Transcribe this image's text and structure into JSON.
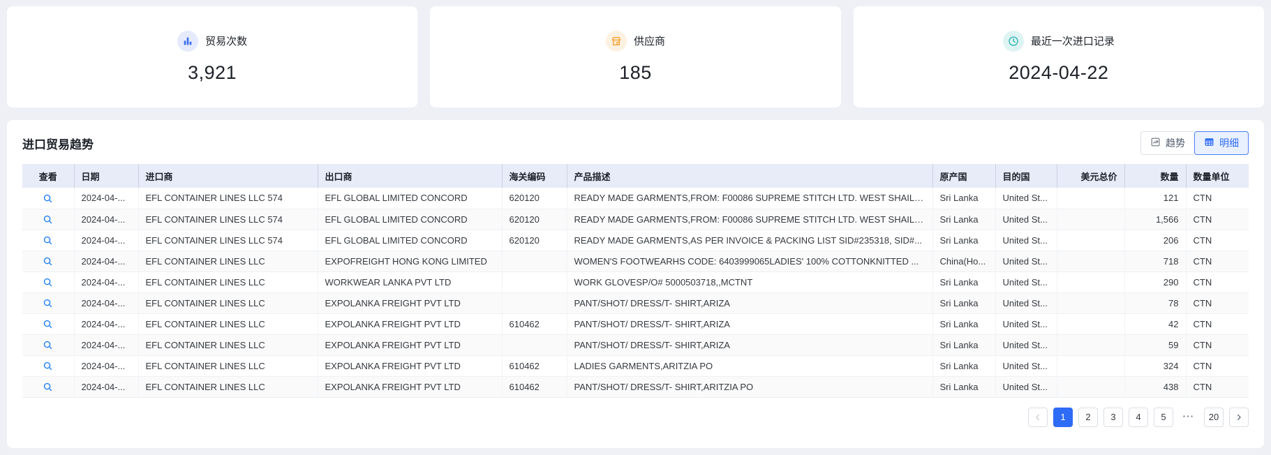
{
  "cards": [
    {
      "icon": "bar-chart-icon",
      "label": "贸易次数",
      "value": "3,921",
      "icon_color": "#3d6df2",
      "icon_bg": "#e5ebfc"
    },
    {
      "icon": "storefront-icon",
      "label": "供应商",
      "value": "185",
      "icon_color": "#f6a12d",
      "icon_bg": "#fdf1e1"
    },
    {
      "icon": "clock-icon",
      "label": "最近一次进口记录",
      "value": "2024-04-22",
      "icon_color": "#25b3b0",
      "icon_bg": "#def4f3"
    }
  ],
  "section": {
    "title": "进口贸易趋势",
    "trend_button": "趋势",
    "detail_button": "明细"
  },
  "table": {
    "headers": [
      "查看",
      "日期",
      "进口商",
      "出口商",
      "海关编码",
      "产品描述",
      "原产国",
      "目的国",
      "美元总价",
      "数量",
      "数量单位"
    ],
    "rows": [
      {
        "date": "2024-04-...",
        "importer": "EFL CONTAINER LINES LLC 574",
        "exporter": "EFL GLOBAL LIMITED CONCORD",
        "hs_code": "620120",
        "description": "READY MADE GARMENTS,FROM: F00086 SUPREME STITCH LTD. WEST SHAILD...",
        "origin": "Sri Lanka",
        "destination": "United St...",
        "usd_total": "",
        "quantity": "121",
        "unit": "CTN"
      },
      {
        "date": "2024-04-...",
        "importer": "EFL CONTAINER LINES LLC 574",
        "exporter": "EFL GLOBAL LIMITED CONCORD",
        "hs_code": "620120",
        "description": "READY MADE GARMENTS,FROM: F00086 SUPREME STITCH LTD. WEST SHAILD...",
        "origin": "Sri Lanka",
        "destination": "United St...",
        "usd_total": "",
        "quantity": "1,566",
        "unit": "CTN"
      },
      {
        "date": "2024-04-...",
        "importer": "EFL CONTAINER LINES LLC 574",
        "exporter": "EFL GLOBAL LIMITED CONCORD",
        "hs_code": "620120",
        "description": "READY MADE GARMENTS,AS PER INVOICE & PACKING LIST SID#235318, SID#...",
        "origin": "Sri Lanka",
        "destination": "United St...",
        "usd_total": "",
        "quantity": "206",
        "unit": "CTN"
      },
      {
        "date": "2024-04-...",
        "importer": "EFL CONTAINER LINES LLC",
        "exporter": "EXPOFREIGHT HONG KONG LIMITED",
        "hs_code": "",
        "description": "WOMEN'S FOOTWEARHS CODE: 6403999065LADIES' 100% COTTONKNITTED ...",
        "origin": "China(Ho...",
        "destination": "United St...",
        "usd_total": "",
        "quantity": "718",
        "unit": "CTN"
      },
      {
        "date": "2024-04-...",
        "importer": "EFL CONTAINER LINES LLC",
        "exporter": "WORKWEAR LANKA PVT LTD",
        "hs_code": "",
        "description": "WORK GLOVESP/O# 5000503718,,MCTNT",
        "origin": "Sri Lanka",
        "destination": "United St...",
        "usd_total": "",
        "quantity": "290",
        "unit": "CTN"
      },
      {
        "date": "2024-04-...",
        "importer": "EFL CONTAINER LINES LLC",
        "exporter": "EXPOLANKA FREIGHT PVT LTD",
        "hs_code": "",
        "description": "PANT/SHOT/ DRESS/T- SHIRT,ARIZA",
        "origin": "Sri Lanka",
        "destination": "United St...",
        "usd_total": "",
        "quantity": "78",
        "unit": "CTN"
      },
      {
        "date": "2024-04-...",
        "importer": "EFL CONTAINER LINES LLC",
        "exporter": "EXPOLANKA FREIGHT PVT LTD",
        "hs_code": "610462",
        "description": "PANT/SHOT/ DRESS/T- SHIRT,ARIZA",
        "origin": "Sri Lanka",
        "destination": "United St...",
        "usd_total": "",
        "quantity": "42",
        "unit": "CTN"
      },
      {
        "date": "2024-04-...",
        "importer": "EFL CONTAINER LINES LLC",
        "exporter": "EXPOLANKA FREIGHT PVT LTD",
        "hs_code": "",
        "description": "PANT/SHOT/ DRESS/T- SHIRT,ARIZA",
        "origin": "Sri Lanka",
        "destination": "United St...",
        "usd_total": "",
        "quantity": "59",
        "unit": "CTN"
      },
      {
        "date": "2024-04-...",
        "importer": "EFL CONTAINER LINES LLC",
        "exporter": "EXPOLANKA FREIGHT PVT LTD",
        "hs_code": "610462",
        "description": "LADIES GARMENTS,ARITZIA PO",
        "origin": "Sri Lanka",
        "destination": "United St...",
        "usd_total": "",
        "quantity": "324",
        "unit": "CTN"
      },
      {
        "date": "2024-04-...",
        "importer": "EFL CONTAINER LINES LLC",
        "exporter": "EXPOLANKA FREIGHT PVT LTD",
        "hs_code": "610462",
        "description": "PANT/SHOT/ DRESS/T- SHIRT,ARITZIA PO",
        "origin": "Sri Lanka",
        "destination": "United St...",
        "usd_total": "",
        "quantity": "438",
        "unit": "CTN"
      }
    ]
  },
  "pagination": {
    "current": "1",
    "pages": [
      "1",
      "2",
      "3",
      "4",
      "5"
    ],
    "ellipsis": "•••",
    "last_page": "20"
  },
  "colors": {
    "accent_blue": "#2e6bf6",
    "search_icon_blue": "#1d7df7"
  }
}
